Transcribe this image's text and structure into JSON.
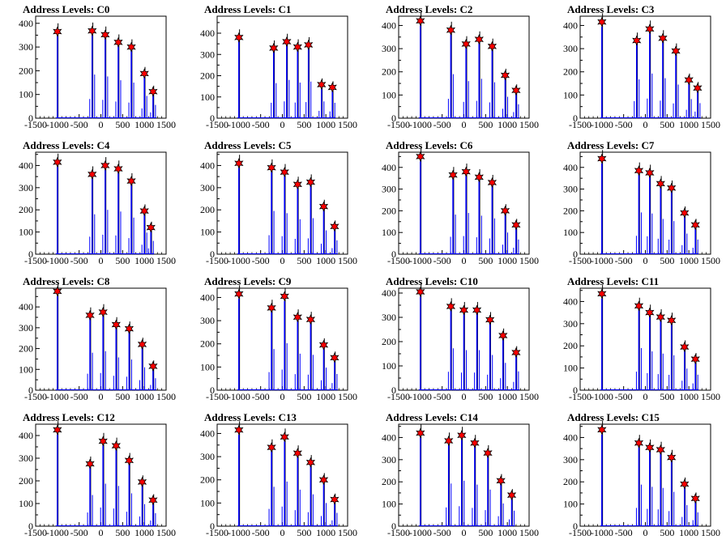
{
  "chart_data": [
    {
      "type": "histogram",
      "title": "Address Levels: C0",
      "xlim": [
        -1500,
        1500
      ],
      "ylim": [
        0,
        430
      ],
      "yticks": [
        0,
        100,
        200,
        300,
        400
      ],
      "xtick_labels": [
        "-1500",
        "-1000",
        "-500",
        "0",
        "500",
        "1000",
        "1500"
      ],
      "peaks": [
        [
          -1000,
          365
        ],
        [
          -200,
          368
        ],
        [
          100,
          352
        ],
        [
          400,
          320
        ],
        [
          700,
          300
        ],
        [
          1000,
          188
        ],
        [
          1200,
          112
        ]
      ],
      "colors": {
        "peak": "#ff0000",
        "histogram": "#0000ff"
      }
    },
    {
      "type": "histogram",
      "title": "Address Levels: C1",
      "xlim": [
        -1500,
        1500
      ],
      "ylim": [
        0,
        480
      ],
      "yticks": [
        0,
        100,
        200,
        300,
        400
      ],
      "xtick_labels": [
        "-1500",
        "-1000",
        "-500",
        "0",
        "500",
        "1000",
        "1500"
      ],
      "peaks": [
        [
          -1000,
          380
        ],
        [
          -200,
          330
        ],
        [
          100,
          360
        ],
        [
          350,
          335
        ],
        [
          600,
          345
        ],
        [
          900,
          158
        ],
        [
          1150,
          145
        ]
      ],
      "colors": {
        "peak": "#ff0000",
        "histogram": "#0000ff"
      }
    },
    {
      "type": "histogram",
      "title": "Address Levels: C2",
      "xlim": [
        -1500,
        1500
      ],
      "ylim": [
        0,
        440
      ],
      "yticks": [
        0,
        100,
        200,
        300,
        400
      ],
      "xtick_labels": [
        "-1500",
        "-1000",
        "-500",
        "0",
        "500",
        "1000",
        "1500"
      ],
      "peaks": [
        [
          -1000,
          420
        ],
        [
          -300,
          380
        ],
        [
          50,
          320
        ],
        [
          350,
          340
        ],
        [
          650,
          310
        ],
        [
          950,
          185
        ],
        [
          1200,
          120
        ]
      ],
      "colors": {
        "peak": "#ff0000",
        "histogram": "#0000ff"
      }
    },
    {
      "type": "histogram",
      "title": "Address Levels: C3",
      "xlim": [
        -1500,
        1500
      ],
      "ylim": [
        0,
        440
      ],
      "yticks": [
        0,
        100,
        200,
        300,
        400
      ],
      "xtick_labels": [
        "-1500",
        "-1000",
        "-500",
        "0",
        "500",
        "1000",
        "1500"
      ],
      "peaks": [
        [
          -1000,
          415
        ],
        [
          -200,
          335
        ],
        [
          100,
          385
        ],
        [
          400,
          345
        ],
        [
          700,
          290
        ],
        [
          1000,
          165
        ],
        [
          1200,
          130
        ]
      ],
      "colors": {
        "peak": "#ff0000",
        "histogram": "#0000ff"
      }
    },
    {
      "type": "histogram",
      "title": "Address Levels: C4",
      "xlim": [
        -1500,
        1500
      ],
      "ylim": [
        0,
        460
      ],
      "yticks": [
        0,
        100,
        200,
        300,
        400
      ],
      "xtick_labels": [
        "-1500",
        "-1000",
        "-500",
        "0",
        "500",
        "1000",
        "1500"
      ],
      "peaks": [
        [
          -1000,
          415
        ],
        [
          -200,
          360
        ],
        [
          100,
          400
        ],
        [
          400,
          385
        ],
        [
          700,
          330
        ],
        [
          1000,
          195
        ],
        [
          1150,
          120
        ]
      ],
      "colors": {
        "peak": "#ff0000",
        "histogram": "#0000ff"
      }
    },
    {
      "type": "histogram",
      "title": "Address Levels: C5",
      "xlim": [
        -1500,
        1500
      ],
      "ylim": [
        0,
        460
      ],
      "yticks": [
        0,
        100,
        200,
        300,
        400
      ],
      "xtick_labels": [
        "-1500",
        "-1000",
        "-500",
        "0",
        "500",
        "1000",
        "1500"
      ],
      "peaks": [
        [
          -1000,
          410
        ],
        [
          -250,
          390
        ],
        [
          50,
          370
        ],
        [
          350,
          315
        ],
        [
          650,
          325
        ],
        [
          950,
          215
        ],
        [
          1200,
          125
        ]
      ],
      "colors": {
        "peak": "#ff0000",
        "histogram": "#0000ff"
      }
    },
    {
      "type": "histogram",
      "title": "Address Levels: C6",
      "xlim": [
        -1500,
        1500
      ],
      "ylim": [
        0,
        470
      ],
      "yticks": [
        0,
        100,
        200,
        300,
        400
      ],
      "xtick_labels": [
        "-1500",
        "-1000",
        "-500",
        "0",
        "500",
        "1000",
        "1500"
      ],
      "peaks": [
        [
          -1000,
          450
        ],
        [
          -250,
          365
        ],
        [
          50,
          380
        ],
        [
          350,
          355
        ],
        [
          650,
          330
        ],
        [
          950,
          200
        ],
        [
          1200,
          135
        ]
      ],
      "colors": {
        "peak": "#ff0000",
        "histogram": "#0000ff"
      }
    },
    {
      "type": "histogram",
      "title": "Address Levels: C7",
      "xlim": [
        -1500,
        1500
      ],
      "ylim": [
        0,
        470
      ],
      "yticks": [
        0,
        100,
        200,
        300,
        400
      ],
      "xtick_labels": [
        "-1500",
        "-1000",
        "-500",
        "0",
        "500",
        "1000",
        "1500"
      ],
      "peaks": [
        [
          -1000,
          440
        ],
        [
          -150,
          385
        ],
        [
          100,
          375
        ],
        [
          350,
          325
        ],
        [
          600,
          305
        ],
        [
          900,
          190
        ],
        [
          1150,
          135
        ]
      ],
      "colors": {
        "peak": "#ff0000",
        "histogram": "#0000ff"
      }
    },
    {
      "type": "histogram",
      "title": "Address Levels: C8",
      "xlim": [
        -1500,
        1500
      ],
      "ylim": [
        0,
        490
      ],
      "yticks": [
        0,
        100,
        200,
        300,
        400
      ],
      "xtick_labels": [
        "-1500",
        "-1000",
        "-500",
        "0",
        "500",
        "1000",
        "1500"
      ],
      "peaks": [
        [
          -1000,
          475
        ],
        [
          -250,
          360
        ],
        [
          50,
          375
        ],
        [
          350,
          315
        ],
        [
          650,
          295
        ],
        [
          950,
          220
        ],
        [
          1200,
          115
        ]
      ],
      "colors": {
        "peak": "#ff0000",
        "histogram": "#0000ff"
      }
    },
    {
      "type": "histogram",
      "title": "Address Levels: C9",
      "xlim": [
        -1500,
        1500
      ],
      "ylim": [
        0,
        440
      ],
      "yticks": [
        0,
        100,
        200,
        300,
        400
      ],
      "xtick_labels": [
        "-1500",
        "-1000",
        "-500",
        "0",
        "500",
        "1000",
        "1500"
      ],
      "peaks": [
        [
          -1000,
          415
        ],
        [
          -250,
          355
        ],
        [
          50,
          405
        ],
        [
          350,
          315
        ],
        [
          650,
          305
        ],
        [
          950,
          195
        ],
        [
          1200,
          140
        ]
      ],
      "colors": {
        "peak": "#ff0000",
        "histogram": "#0000ff"
      }
    },
    {
      "type": "histogram",
      "title": "Address Levels: C10",
      "xlim": [
        -1500,
        1500
      ],
      "ylim": [
        0,
        420
      ],
      "yticks": [
        0,
        100,
        200,
        300,
        400
      ],
      "xtick_labels": [
        "-1500",
        "-1000",
        "-500",
        "0",
        "500",
        "1000",
        "1500"
      ],
      "peaks": [
        [
          -1000,
          405
        ],
        [
          -300,
          345
        ],
        [
          0,
          330
        ],
        [
          300,
          330
        ],
        [
          600,
          290
        ],
        [
          900,
          225
        ],
        [
          1200,
          155
        ]
      ],
      "colors": {
        "peak": "#ff0000",
        "histogram": "#0000ff"
      }
    },
    {
      "type": "histogram",
      "title": "Address Levels: C11",
      "xlim": [
        -1500,
        1500
      ],
      "ylim": [
        0,
        460
      ],
      "yticks": [
        0,
        100,
        200,
        300,
        400
      ],
      "xtick_labels": [
        "-1500",
        "-1000",
        "-500",
        "0",
        "500",
        "1000",
        "1500"
      ],
      "peaks": [
        [
          -1000,
          435
        ],
        [
          -150,
          380
        ],
        [
          100,
          350
        ],
        [
          350,
          330
        ],
        [
          600,
          315
        ],
        [
          900,
          195
        ],
        [
          1150,
          140
        ]
      ],
      "colors": {
        "peak": "#ff0000",
        "histogram": "#0000ff"
      }
    },
    {
      "type": "histogram",
      "title": "Address Levels: C12",
      "xlim": [
        -1500,
        1500
      ],
      "ylim": [
        0,
        450
      ],
      "yticks": [
        0,
        100,
        200,
        300,
        400
      ],
      "xtick_labels": [
        "-1500",
        "-1000",
        "-500",
        "0",
        "500",
        "1000",
        "1500"
      ],
      "peaks": [
        [
          -1000,
          425
        ],
        [
          -250,
          275
        ],
        [
          50,
          375
        ],
        [
          350,
          355
        ],
        [
          650,
          290
        ],
        [
          950,
          195
        ],
        [
          1200,
          115
        ]
      ],
      "colors": {
        "peak": "#ff0000",
        "histogram": "#0000ff"
      }
    },
    {
      "type": "histogram",
      "title": "Address Levels: C13",
      "xlim": [
        -1500,
        1500
      ],
      "ylim": [
        0,
        440
      ],
      "yticks": [
        0,
        100,
        200,
        300,
        400
      ],
      "xtick_labels": [
        "-1500",
        "-1000",
        "-500",
        "0",
        "500",
        "1000",
        "1500"
      ],
      "peaks": [
        [
          -1000,
          415
        ],
        [
          -250,
          340
        ],
        [
          50,
          385
        ],
        [
          350,
          315
        ],
        [
          650,
          275
        ],
        [
          950,
          200
        ],
        [
          1200,
          115
        ]
      ],
      "colors": {
        "peak": "#ff0000",
        "histogram": "#0000ff"
      }
    },
    {
      "type": "histogram",
      "title": "Address Levels: C14",
      "xlim": [
        -1500,
        1500
      ],
      "ylim": [
        0,
        460
      ],
      "yticks": [
        0,
        100,
        200,
        300,
        400
      ],
      "xtick_labels": [
        "-1500",
        "-1000",
        "-500",
        "0",
        "500",
        "1000",
        "1500"
      ],
      "peaks": [
        [
          -1000,
          420
        ],
        [
          -350,
          385
        ],
        [
          -50,
          410
        ],
        [
          250,
          375
        ],
        [
          550,
          330
        ],
        [
          850,
          205
        ],
        [
          1100,
          140
        ]
      ],
      "colors": {
        "peak": "#ff0000",
        "histogram": "#0000ff"
      }
    },
    {
      "type": "histogram",
      "title": "Address Levels: C15",
      "xlim": [
        -1500,
        1500
      ],
      "ylim": [
        0,
        460
      ],
      "yticks": [
        0,
        100,
        200,
        300,
        400
      ],
      "xtick_labels": [
        "-1500",
        "-1000",
        "-500",
        "0",
        "500",
        "1000",
        "1500"
      ],
      "peaks": [
        [
          -1000,
          435
        ],
        [
          -150,
          375
        ],
        [
          100,
          355
        ],
        [
          350,
          345
        ],
        [
          600,
          310
        ],
        [
          900,
          190
        ],
        [
          1150,
          125
        ]
      ],
      "colors": {
        "peak": "#ff0000",
        "histogram": "#0000ff"
      }
    }
  ]
}
